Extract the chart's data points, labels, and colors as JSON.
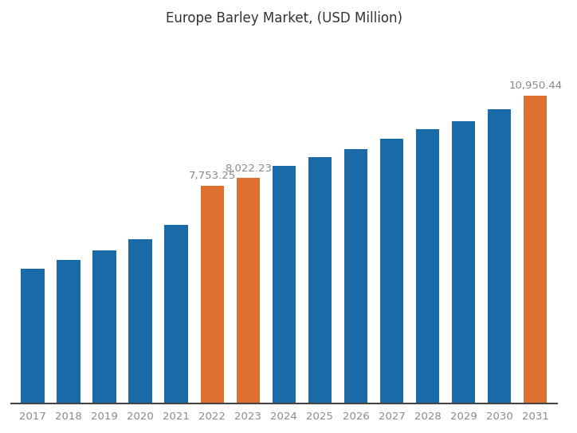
{
  "title": "Europe Barley Market, (USD Million)",
  "years": [
    2017,
    2018,
    2019,
    2020,
    2021,
    2022,
    2023,
    2024,
    2025,
    2026,
    2027,
    2028,
    2029,
    2030,
    2031
  ],
  "values": [
    4800,
    5100,
    5450,
    5850,
    6350,
    7753.25,
    8022.23,
    8450,
    8750,
    9050,
    9400,
    9750,
    10050,
    10450,
    10950.44
  ],
  "colors": [
    "#1a6aa8",
    "#1a6aa8",
    "#1a6aa8",
    "#1a6aa8",
    "#1a6aa8",
    "#e07030",
    "#e07030",
    "#1a6aa8",
    "#1a6aa8",
    "#1a6aa8",
    "#1a6aa8",
    "#1a6aa8",
    "#1a6aa8",
    "#1a6aa8",
    "#e07030"
  ],
  "annotated_bars": {
    "2022": "7,753.25",
    "2023": "8,022.23",
    "2031": "10,950.44"
  },
  "background_color": "#ffffff",
  "bar_width": 0.65,
  "ylim": [
    0,
    13000
  ],
  "title_fontsize": 12,
  "tick_fontsize": 9.5,
  "annotation_fontsize": 9.5,
  "annotation_color": "#888888",
  "title_color": "#333333",
  "tick_color": "#888888"
}
